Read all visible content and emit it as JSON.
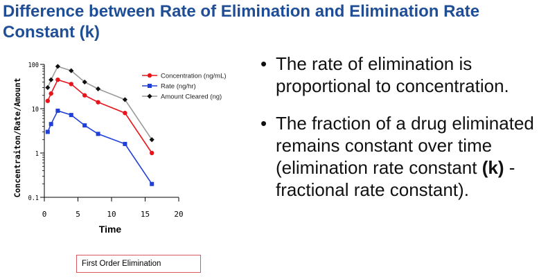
{
  "slide": {
    "title": "Difference between Rate of Elimination and Elimination Rate Constant (k)",
    "bullets": [
      {
        "parts": [
          {
            "text": "The rate of elimination is proportional to concentration.",
            "bold": false
          }
        ]
      },
      {
        "parts": [
          {
            "text": "The fraction of a drug eliminated remains constant over time (elimination rate constant ",
            "bold": false
          },
          {
            "text": "(k)",
            "bold": true
          },
          {
            "text": " - fractional rate constant).",
            "bold": false
          }
        ]
      }
    ],
    "caption": "First Order Elimination"
  },
  "chart_data": {
    "type": "line",
    "xlabel": "Time",
    "ylabel": "Concentraiton/Rate/Amount",
    "xlim": [
      0,
      20
    ],
    "ylim": [
      0.1,
      100
    ],
    "yscale": "log",
    "xticks": [
      0,
      5,
      10,
      15,
      20
    ],
    "yticks": [
      {
        "value": 0.1,
        "label": "0.1"
      },
      {
        "value": 1,
        "label": "1"
      },
      {
        "value": 10,
        "label": "10"
      },
      {
        "value": 100,
        "label": "100"
      }
    ],
    "legend_position": "top-right",
    "series": [
      {
        "name": "Concentration (ng/mL)",
        "color": "#e8141c",
        "marker": "circle",
        "x": [
          0.5,
          1,
          2,
          4,
          6,
          8,
          12,
          16
        ],
        "y": [
          15,
          22,
          45,
          36,
          20,
          14,
          8,
          1
        ]
      },
      {
        "name": "Rate (ng/hr)",
        "color": "#1f3fd8",
        "marker": "square",
        "x": [
          0.5,
          1,
          2,
          4,
          6,
          8,
          12,
          16
        ],
        "y": [
          3,
          4.5,
          9,
          7.2,
          4.2,
          2.7,
          1.6,
          0.2
        ]
      },
      {
        "name": "Amount Cleared (ng)",
        "color": "#111111",
        "marker": "diamond",
        "line_color": "#9a9a9a",
        "x": [
          0.5,
          1,
          2,
          4,
          6,
          8,
          12,
          16
        ],
        "y": [
          30,
          45,
          90,
          72,
          40,
          28,
          16,
          2
        ]
      }
    ]
  }
}
